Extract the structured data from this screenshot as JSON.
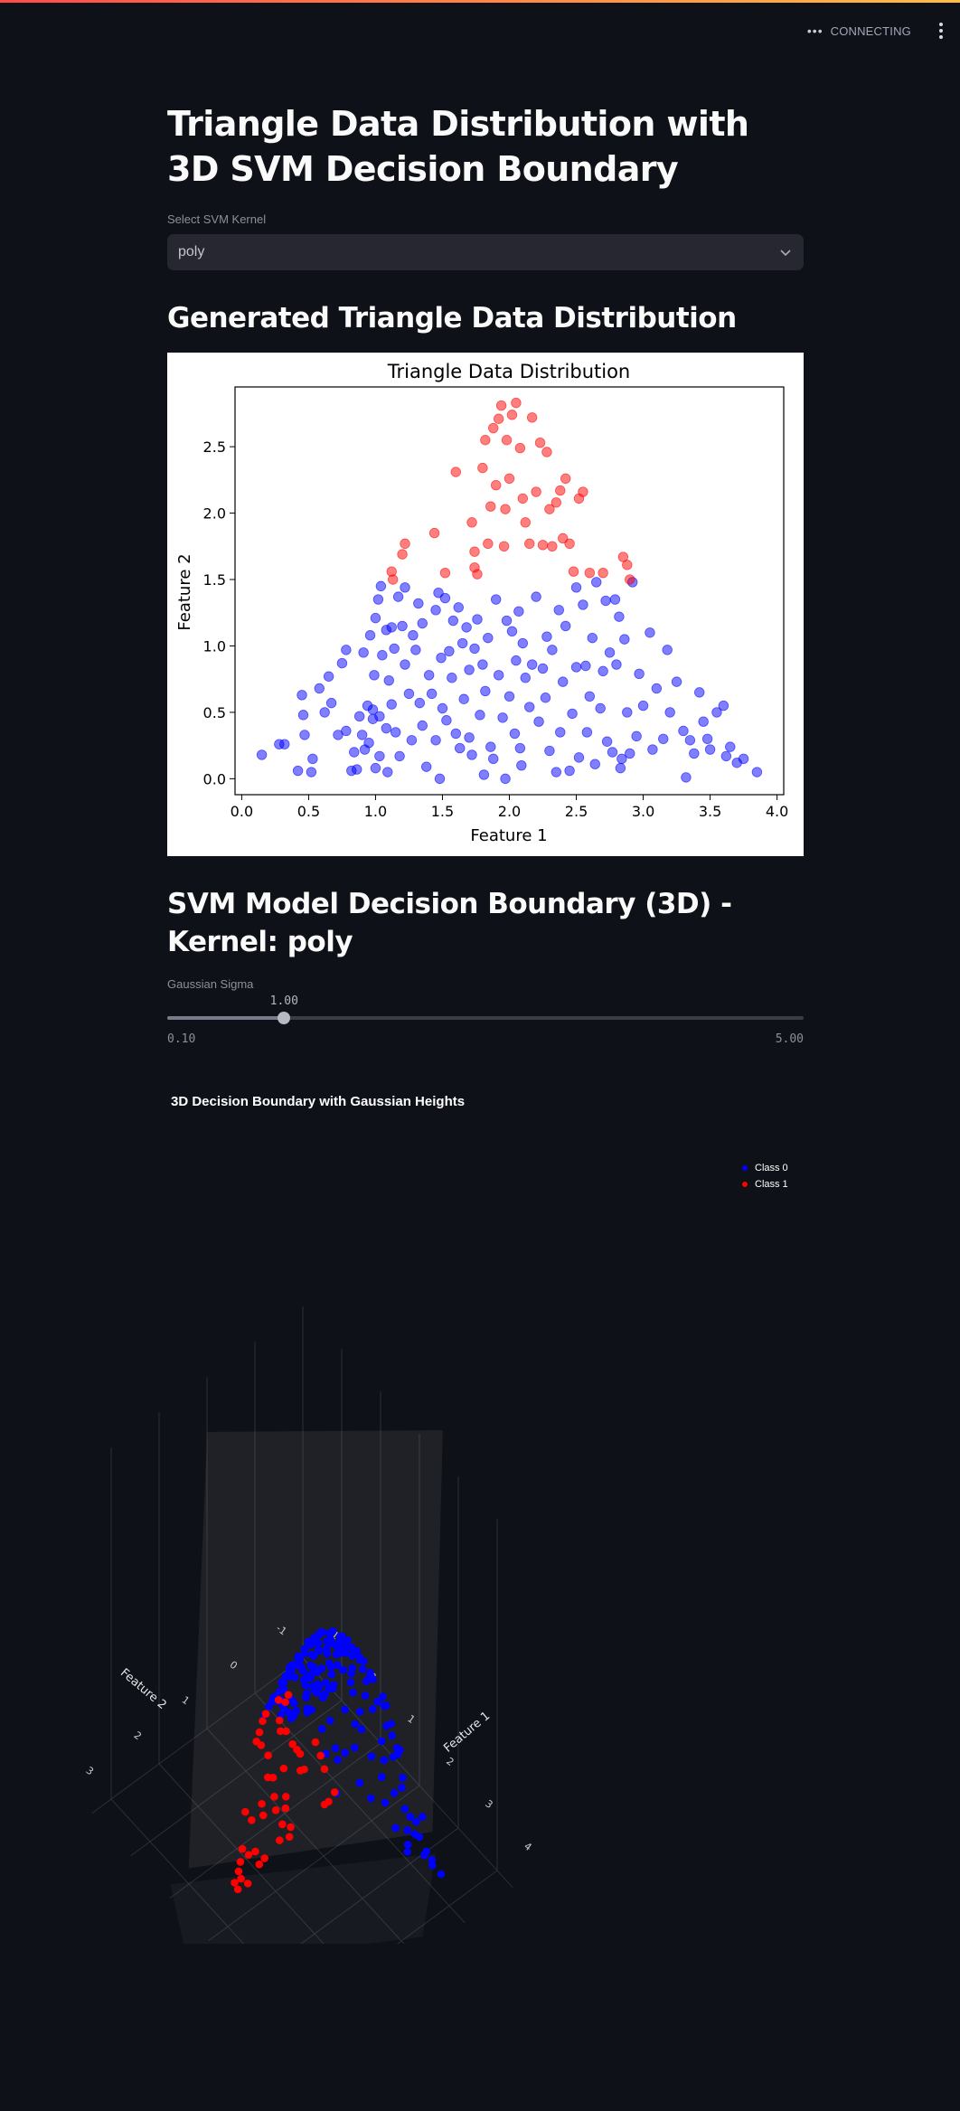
{
  "header": {
    "status_text": "CONNECTING",
    "status_dots_icon": "•••",
    "menu_icon": "vertical-dots-icon"
  },
  "page": {
    "title": "Triangle Data Distribution with 3D SVM Decision Boundary"
  },
  "kernel_select": {
    "label": "Select SVM Kernel",
    "value": "poly",
    "chevron": "⌄"
  },
  "section_2d": {
    "heading": "Generated Triangle Data Distribution"
  },
  "section_3d": {
    "heading": "SVM Model Decision Boundary (3D) - Kernel: poly"
  },
  "sigma_slider": {
    "label": "Gaussian Sigma",
    "value": 1.0,
    "value_label": "1.00",
    "min": 0.1,
    "max": 5.0,
    "min_label": "0.10",
    "max_label": "5.00"
  },
  "chart_data": [
    {
      "type": "scatter",
      "title": "Triangle Data Distribution",
      "xlabel": "Feature 1",
      "ylabel": "Feature 2",
      "xlim": [
        -0.05,
        4.05
      ],
      "ylim": [
        -0.12,
        2.95
      ],
      "xticks": [
        "0.0",
        "0.5",
        "1.0",
        "1.5",
        "2.0",
        "2.5",
        "3.0",
        "3.5",
        "4.0"
      ],
      "yticks": [
        "0.0",
        "0.5",
        "1.0",
        "1.5",
        "2.0",
        "2.5"
      ],
      "grid": false,
      "series": [
        {
          "color": "#0000ff",
          "points": [
            [
              0.15,
              0.18
            ],
            [
              0.28,
              0.26
            ],
            [
              0.32,
              0.26
            ],
            [
              0.42,
              0.06
            ],
            [
              0.45,
              0.63
            ],
            [
              0.46,
              0.48
            ],
            [
              0.47,
              0.33
            ],
            [
              0.52,
              0.05
            ],
            [
              0.53,
              0.15
            ],
            [
              0.58,
              0.68
            ],
            [
              0.62,
              0.5
            ],
            [
              0.65,
              0.77
            ],
            [
              0.67,
              0.57
            ],
            [
              0.72,
              0.33
            ],
            [
              0.75,
              0.87
            ],
            [
              0.78,
              0.97
            ],
            [
              0.78,
              0.36
            ],
            [
              0.82,
              0.06
            ],
            [
              0.84,
              0.2
            ],
            [
              0.86,
              0.07
            ],
            [
              0.88,
              0.47
            ],
            [
              0.9,
              0.33
            ],
            [
              0.91,
              0.95
            ],
            [
              0.92,
              0.22
            ],
            [
              0.94,
              0.55
            ],
            [
              0.95,
              0.27
            ],
            [
              0.96,
              1.08
            ],
            [
              0.98,
              0.52
            ],
            [
              0.98,
              0.45
            ],
            [
              0.99,
              0.78
            ],
            [
              1.0,
              1.21
            ],
            [
              1.0,
              0.08
            ],
            [
              1.02,
              1.35
            ],
            [
              1.03,
              0.47
            ],
            [
              1.03,
              0.17
            ],
            [
              1.04,
              1.45
            ],
            [
              1.05,
              0.93
            ],
            [
              1.08,
              1.12
            ],
            [
              1.08,
              0.38
            ],
            [
              1.09,
              0.05
            ],
            [
              1.1,
              0.74
            ],
            [
              1.12,
              1.14
            ],
            [
              1.12,
              0.56
            ],
            [
              1.14,
              0.98
            ],
            [
              1.15,
              0.35
            ],
            [
              1.17,
              1.37
            ],
            [
              1.18,
              0.17
            ],
            [
              1.2,
              1.15
            ],
            [
              1.22,
              1.44
            ],
            [
              1.22,
              0.86
            ],
            [
              1.25,
              0.64
            ],
            [
              1.27,
              0.29
            ],
            [
              1.28,
              1.08
            ],
            [
              1.3,
              0.97
            ],
            [
              1.32,
              1.32
            ],
            [
              1.33,
              0.57
            ],
            [
              1.35,
              1.17
            ],
            [
              1.35,
              0.4
            ],
            [
              1.38,
              0.09
            ],
            [
              1.4,
              0.78
            ],
            [
              1.42,
              0.64
            ],
            [
              1.45,
              1.27
            ],
            [
              1.45,
              0.29
            ],
            [
              1.47,
              1.4
            ],
            [
              1.48,
              0.0
            ],
            [
              1.49,
              0.91
            ],
            [
              1.5,
              0.53
            ],
            [
              1.52,
              1.36
            ],
            [
              1.53,
              0.44
            ],
            [
              1.55,
              0.96
            ],
            [
              1.57,
              0.76
            ],
            [
              1.58,
              1.19
            ],
            [
              1.6,
              0.34
            ],
            [
              1.62,
              1.29
            ],
            [
              1.63,
              0.23
            ],
            [
              1.65,
              1.02
            ],
            [
              1.66,
              0.6
            ],
            [
              1.68,
              1.14
            ],
            [
              1.7,
              0.82
            ],
            [
              1.7,
              0.31
            ],
            [
              1.72,
              0.18
            ],
            [
              1.74,
              0.98
            ],
            [
              1.76,
              1.2
            ],
            [
              1.78,
              0.48
            ],
            [
              1.8,
              0.86
            ],
            [
              1.81,
              0.03
            ],
            [
              1.82,
              0.66
            ],
            [
              1.84,
              1.06
            ],
            [
              1.86,
              0.24
            ],
            [
              1.88,
              0.15
            ],
            [
              1.9,
              1.35
            ],
            [
              1.92,
              0.78
            ],
            [
              1.95,
              0.46
            ],
            [
              1.97,
              0.0
            ],
            [
              1.98,
              1.19
            ],
            [
              2.0,
              0.62
            ],
            [
              2.02,
              1.11
            ],
            [
              2.04,
              0.34
            ],
            [
              2.05,
              0.89
            ],
            [
              2.07,
              1.26
            ],
            [
              2.08,
              0.23
            ],
            [
              2.09,
              0.1
            ],
            [
              2.1,
              1.02
            ],
            [
              2.12,
              0.76
            ],
            [
              2.15,
              0.54
            ],
            [
              2.17,
              0.86
            ],
            [
              2.2,
              1.37
            ],
            [
              2.22,
              0.43
            ],
            [
              2.25,
              0.83
            ],
            [
              2.27,
              0.61
            ],
            [
              2.28,
              1.07
            ],
            [
              2.3,
              0.21
            ],
            [
              2.32,
              0.97
            ],
            [
              2.35,
              0.05
            ],
            [
              2.37,
              1.27
            ],
            [
              2.38,
              0.35
            ],
            [
              2.4,
              0.73
            ],
            [
              2.42,
              1.15
            ],
            [
              2.45,
              0.06
            ],
            [
              2.47,
              0.49
            ],
            [
              2.5,
              1.44
            ],
            [
              2.5,
              0.84
            ],
            [
              2.52,
              0.16
            ],
            [
              2.55,
              1.31
            ],
            [
              2.57,
              0.85
            ],
            [
              2.58,
              0.35
            ],
            [
              2.6,
              0.62
            ],
            [
              2.62,
              1.06
            ],
            [
              2.64,
              0.11
            ],
            [
              2.65,
              1.48
            ],
            [
              2.68,
              0.53
            ],
            [
              2.7,
              0.81
            ],
            [
              2.72,
              1.34
            ],
            [
              2.73,
              0.28
            ],
            [
              2.75,
              0.95
            ],
            [
              2.77,
              0.2
            ],
            [
              2.79,
              1.35
            ],
            [
              2.8,
              0.86
            ],
            [
              2.82,
              1.22
            ],
            [
              2.83,
              0.08
            ],
            [
              2.84,
              0.15
            ],
            [
              2.86,
              1.05
            ],
            [
              2.88,
              0.5
            ],
            [
              2.9,
              0.19
            ],
            [
              2.92,
              1.48
            ],
            [
              2.95,
              0.32
            ],
            [
              2.97,
              0.79
            ],
            [
              3.0,
              0.55
            ],
            [
              3.05,
              1.1
            ],
            [
              3.07,
              0.22
            ],
            [
              3.1,
              0.68
            ],
            [
              3.15,
              0.3
            ],
            [
              3.18,
              0.97
            ],
            [
              3.2,
              0.5
            ],
            [
              3.25,
              0.73
            ],
            [
              3.3,
              0.36
            ],
            [
              3.32,
              0.01
            ],
            [
              3.35,
              0.29
            ],
            [
              3.38,
              0.19
            ],
            [
              3.42,
              0.65
            ],
            [
              3.45,
              0.43
            ],
            [
              3.48,
              0.3
            ],
            [
              3.5,
              0.22
            ],
            [
              3.55,
              0.5
            ],
            [
              3.6,
              0.55
            ],
            [
              3.62,
              0.17
            ],
            [
              3.65,
              0.24
            ],
            [
              3.7,
              0.12
            ],
            [
              3.75,
              0.15
            ],
            [
              3.85,
              0.05
            ]
          ]
        },
        {
          "color": "#ff0000",
          "points": [
            [
              1.12,
              1.56
            ],
            [
              1.13,
              1.5
            ],
            [
              1.2,
              1.69
            ],
            [
              1.22,
              1.77
            ],
            [
              1.44,
              1.85
            ],
            [
              1.52,
              1.55
            ],
            [
              1.6,
              2.31
            ],
            [
              1.72,
              1.93
            ],
            [
              1.74,
              1.71
            ],
            [
              1.74,
              1.59
            ],
            [
              1.76,
              1.54
            ],
            [
              1.8,
              2.34
            ],
            [
              1.82,
              2.55
            ],
            [
              1.84,
              1.77
            ],
            [
              1.86,
              2.05
            ],
            [
              1.88,
              2.64
            ],
            [
              1.9,
              2.21
            ],
            [
              1.92,
              2.71
            ],
            [
              1.94,
              2.81
            ],
            [
              1.96,
              1.75
            ],
            [
              1.97,
              2.03
            ],
            [
              1.98,
              2.55
            ],
            [
              2.0,
              2.26
            ],
            [
              2.02,
              2.74
            ],
            [
              2.05,
              2.83
            ],
            [
              2.08,
              2.49
            ],
            [
              2.1,
              2.11
            ],
            [
              2.12,
              1.93
            ],
            [
              2.15,
              1.77
            ],
            [
              2.17,
              2.72
            ],
            [
              2.2,
              2.16
            ],
            [
              2.23,
              2.53
            ],
            [
              2.25,
              1.76
            ],
            [
              2.28,
              2.46
            ],
            [
              2.3,
              2.03
            ],
            [
              2.32,
              1.75
            ],
            [
              2.35,
              2.08
            ],
            [
              2.38,
              2.17
            ],
            [
              2.4,
              1.81
            ],
            [
              2.42,
              2.26
            ],
            [
              2.45,
              1.77
            ],
            [
              2.48,
              1.56
            ],
            [
              2.52,
              2.11
            ],
            [
              2.55,
              2.16
            ],
            [
              2.6,
              1.55
            ],
            [
              2.7,
              1.55
            ],
            [
              2.85,
              1.67
            ],
            [
              2.88,
              1.61
            ],
            [
              2.9,
              1.5
            ]
          ]
        }
      ]
    },
    {
      "type": "scatter",
      "title": "3D Decision Boundary with Gaussian Heights",
      "xlabel": "Feature 1",
      "ylabel": "Feature 2",
      "xticks": [
        "-1",
        "0",
        "1",
        "2",
        "3",
        "4"
      ],
      "yticks": [
        "-1",
        "0",
        "1",
        "2",
        "3"
      ],
      "legend_position": "top-right",
      "series": [
        {
          "name": "Class 0",
          "color": "#0000ff"
        },
        {
          "name": "Class 1",
          "color": "#ff0000"
        }
      ]
    }
  ]
}
